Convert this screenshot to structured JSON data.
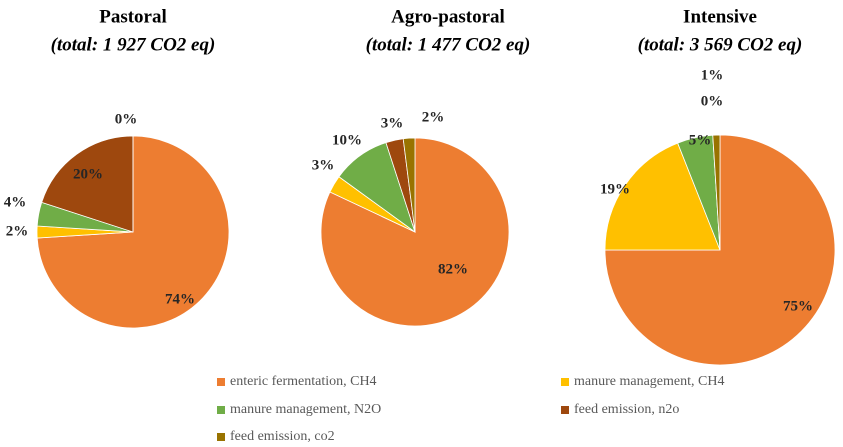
{
  "chart_data": [
    {
      "type": "pie",
      "title": "Pastoral",
      "subtitle": "(total: 1 927 CO2 eq)",
      "categories": [
        "enteric fermentation, CH4",
        "manure management, CH4",
        "manure management, N2O",
        "feed emission, n2o",
        "feed emission, co2"
      ],
      "colors": [
        "#ed7d31",
        "#ffc000",
        "#70ad47",
        "#9e480e",
        "#997300"
      ],
      "values": [
        74,
        2,
        4,
        20,
        0
      ],
      "value_labels": [
        "74%",
        "2%",
        "4%",
        "20%",
        "0%"
      ]
    },
    {
      "type": "pie",
      "title": "Agro-pastoral",
      "subtitle": "(total: 1 477 CO2 eq)",
      "categories": [
        "enteric fermentation, CH4",
        "manure management, CH4",
        "manure management, N2O",
        "feed emission, n2o",
        "feed emission, co2"
      ],
      "colors": [
        "#ed7d31",
        "#ffc000",
        "#70ad47",
        "#9e480e",
        "#997300"
      ],
      "values": [
        82,
        3,
        10,
        3,
        2
      ],
      "value_labels": [
        "82%",
        "3%",
        "10%",
        "3%",
        "2%"
      ]
    },
    {
      "type": "pie",
      "title": "Intensive",
      "subtitle": "(total: 3 569 CO2 eq)",
      "categories": [
        "enteric fermentation, CH4",
        "manure management, CH4",
        "manure management, N2O",
        "feed emission, n2o",
        "feed emission, co2"
      ],
      "colors": [
        "#ed7d31",
        "#ffc000",
        "#70ad47",
        "#9e480e",
        "#997300"
      ],
      "values": [
        75,
        19,
        5,
        0,
        1
      ],
      "value_labels": [
        "75%",
        "19%",
        "5%",
        "0%",
        "1%"
      ]
    }
  ]
}
